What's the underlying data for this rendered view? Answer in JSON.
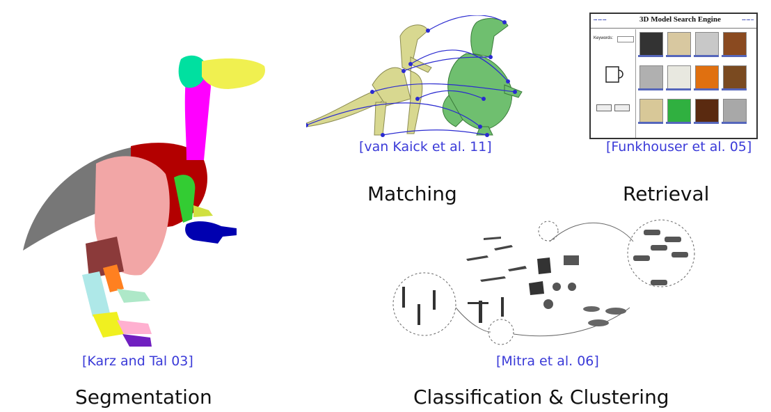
{
  "citations": {
    "segmentation": "[Karz and Tal 03]",
    "matching": "[van Kaick et al. 11]",
    "retrieval": "[Funkhouser et al. 05]",
    "classification": "[Mitra et al. 06]"
  },
  "topics": {
    "segmentation": "Segmentation",
    "matching": "Matching",
    "retrieval": "Retrieval",
    "classification": "Classification & Clustering"
  },
  "search_engine": {
    "title": "3D Model Search Engine",
    "keywords_label": "Keywords:"
  },
  "colors": {
    "citation": "#3a3ad8",
    "bird_body": "#b30000",
    "bird_wing": "#f2a6a6",
    "bird_tail": "#777777",
    "bird_neck": "#ff00ff",
    "bird_head": "#00e0a0",
    "bird_beak": "#f0f050",
    "dino_skeleton": "#d8d890",
    "dino_trex": "#6fbf6f",
    "match_lines": "#2a2ad0"
  },
  "icons": {
    "segmented_model": "segmented-bird-model",
    "matched_models": "skeleton-and-trex-models",
    "search_screenshot": "search-engine-screenshot",
    "cluster_diagram": "shape-cluster-diagram"
  }
}
